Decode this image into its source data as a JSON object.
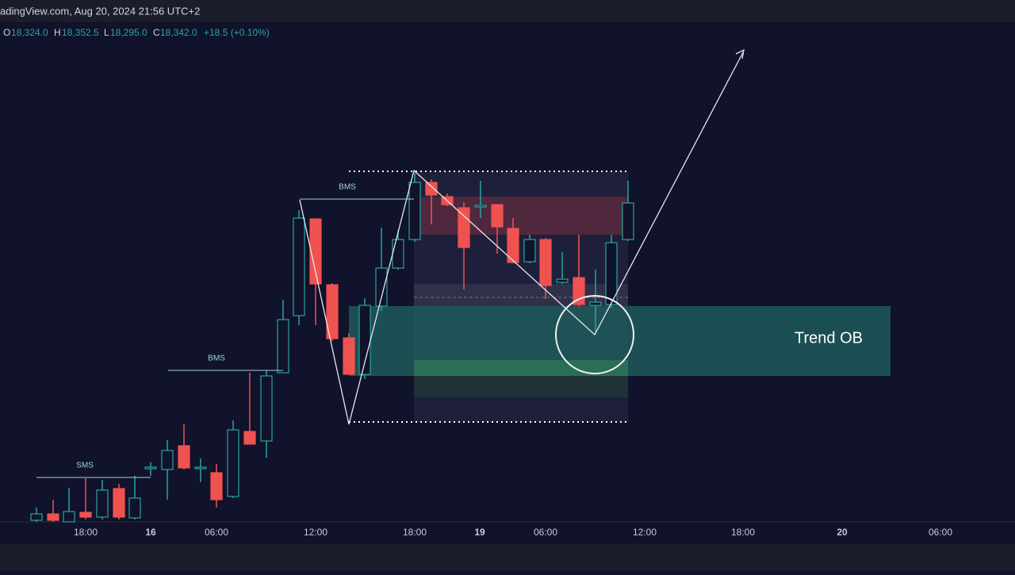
{
  "header": {
    "source": "adingView.com, Aug 20, 2024 21:56 UTC+2"
  },
  "ohlc": {
    "o_label": "O",
    "o": "18,324.0",
    "h_label": "H",
    "h": "18,352.5",
    "l_label": "L",
    "l": "18,295.0",
    "c_label": "C",
    "c": "18,342.0",
    "change": "+18.5 (+0.10%)"
  },
  "annotations": {
    "sms": "SMS",
    "bms_1": "BMS",
    "bms_2": "BMS",
    "zone": "Trend OB"
  },
  "time_axis": [
    "18:00",
    "16",
    "06:00",
    "12:00",
    "18:00",
    "19",
    "06:00",
    "12:00",
    "18:00",
    "20",
    "06:00"
  ]
}
